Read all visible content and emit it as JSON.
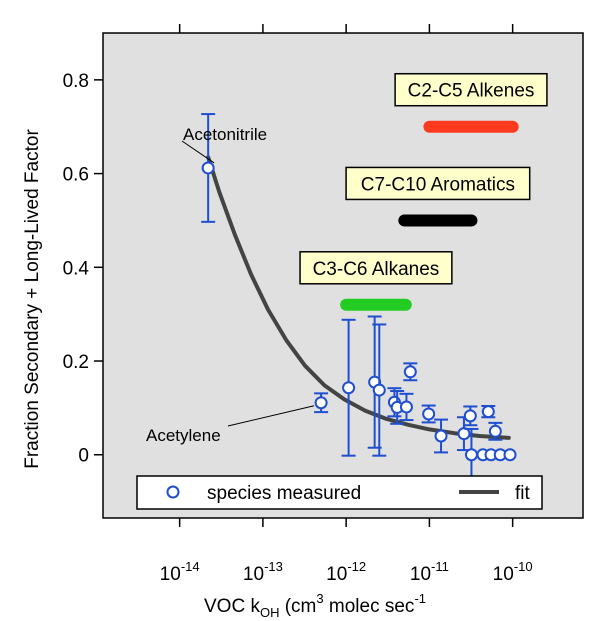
{
  "chart_data": {
    "type": "scatter",
    "xlabel": {
      "base": "VOC k",
      "sub": "OH",
      "paren_open": " (cm",
      "sup1": "3",
      "mid": " molec sec",
      "sup2": "-1",
      "paren_close": ")"
    },
    "ylabel": "Fraction Secondary + Long-Lived Factor",
    "x_scale": "log",
    "xlim": [
      1.2e-15,
      7e-10
    ],
    "ylim": [
      -0.135,
      0.9
    ],
    "x_ticks": [
      {
        "value": 1e-14,
        "base": "10",
        "exp": "-14"
      },
      {
        "value": 1e-13,
        "base": "10",
        "exp": "-13"
      },
      {
        "value": 1e-12,
        "base": "10",
        "exp": "-12"
      },
      {
        "value": 1e-11,
        "base": "10",
        "exp": "-11"
      },
      {
        "value": 1e-10,
        "base": "10",
        "exp": "-10"
      }
    ],
    "y_ticks": [
      {
        "value": 0,
        "label": "0"
      },
      {
        "value": 0.2,
        "label": "0.2"
      },
      {
        "value": 0.4,
        "label": "0.4"
      },
      {
        "value": 0.6,
        "label": "0.6"
      },
      {
        "value": 0.8,
        "label": "0.8"
      }
    ],
    "grid": false,
    "legend": {
      "position": "bottom",
      "entries": [
        {
          "label": "species measured",
          "marker": "circle",
          "color": "#1f4fd0"
        },
        {
          "label": "fit",
          "marker": "line",
          "color": "#444444"
        }
      ]
    },
    "series": [
      {
        "name": "species measured",
        "color": "#1f4fd0",
        "points": [
          {
            "x": 2.2e-14,
            "y": 0.612,
            "err": 0.115
          },
          {
            "x": 5e-13,
            "y": 0.111,
            "err": 0.02
          },
          {
            "x": 1.07e-12,
            "y": 0.143,
            "err": 0.145
          },
          {
            "x": 2.2e-12,
            "y": 0.155,
            "err": 0.14
          },
          {
            "x": 2.5e-12,
            "y": 0.138,
            "err": 0.14
          },
          {
            "x": 3.8e-12,
            "y": 0.112,
            "err": 0.03
          },
          {
            "x": 4.1e-12,
            "y": 0.101,
            "err": 0.035
          },
          {
            "x": 5.3e-12,
            "y": 0.102,
            "err": 0.028
          },
          {
            "x": 5.9e-12,
            "y": 0.177,
            "err": 0.018
          },
          {
            "x": 9.8e-12,
            "y": 0.087,
            "err": 0.018
          },
          {
            "x": 1.38e-11,
            "y": 0.04,
            "err": 0.035
          },
          {
            "x": 2.6e-11,
            "y": 0.045,
            "err": 0.035
          },
          {
            "x": 3.1e-11,
            "y": 0.083,
            "err": 0.02
          },
          {
            "x": 3.2e-11,
            "y": 0.0,
            "err": 0.055
          },
          {
            "x": 4.4e-11,
            "y": 0.0,
            "err": 0
          },
          {
            "x": 5.1e-11,
            "y": 0.092,
            "err": 0.012
          },
          {
            "x": 5.5e-11,
            "y": 0.0,
            "err": 0
          },
          {
            "x": 6.2e-11,
            "y": 0.05,
            "err": 0.018
          },
          {
            "x": 7.1e-11,
            "y": 0.0,
            "err": 0
          },
          {
            "x": 9.3e-11,
            "y": 0.0,
            "err": 0
          }
        ]
      },
      {
        "name": "fit",
        "color": "#444444",
        "points": [
          {
            "x": 2.2e-14,
            "y": 0.635
          },
          {
            "x": 3e-14,
            "y": 0.56
          },
          {
            "x": 4.6e-14,
            "y": 0.47
          },
          {
            "x": 7.2e-14,
            "y": 0.385
          },
          {
            "x": 1.15e-13,
            "y": 0.31
          },
          {
            "x": 1.9e-13,
            "y": 0.245
          },
          {
            "x": 3.2e-13,
            "y": 0.19
          },
          {
            "x": 5.5e-13,
            "y": 0.148
          },
          {
            "x": 9.5e-13,
            "y": 0.118
          },
          {
            "x": 1.7e-12,
            "y": 0.094
          },
          {
            "x": 3e-12,
            "y": 0.077
          },
          {
            "x": 5.5e-12,
            "y": 0.064
          },
          {
            "x": 1e-11,
            "y": 0.054
          },
          {
            "x": 2e-11,
            "y": 0.046
          },
          {
            "x": 4e-11,
            "y": 0.04
          },
          {
            "x": 9e-11,
            "y": 0.036
          }
        ]
      }
    ],
    "ranges": [
      {
        "label": "C2-C5 Alkenes",
        "x0": 1e-11,
        "x1": 1e-10,
        "y": 0.7,
        "color": "#ff3b1f"
      },
      {
        "label": "C7-C10 Aromatics",
        "x0": 5e-12,
        "x1": 3.2e-11,
        "y": 0.5,
        "color": "#000000"
      },
      {
        "label": "C3-C6 Alkanes",
        "x0": 1e-12,
        "x1": 5.2e-12,
        "y": 0.32,
        "color": "#22cc22"
      }
    ],
    "annotations": [
      {
        "text": "Acetonitrile"
      },
      {
        "text": "Acetylene"
      }
    ]
  }
}
